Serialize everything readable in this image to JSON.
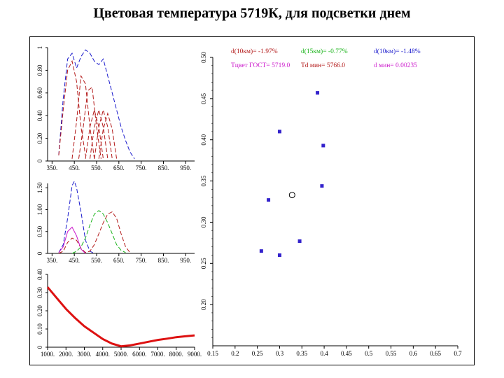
{
  "slide": {
    "title": "Цветовая температура 5719К, для подсветки днем"
  },
  "colors": {
    "blue": "#1a1acc",
    "red": "#b31a1a",
    "green": "#19b319",
    "purple": "#cc19cc",
    "thick_red": "#dd1111",
    "marker": "#3322cc",
    "frame": "#000000"
  },
  "chart_data": [
    {
      "id": "spectra-panel",
      "type": "line",
      "xlim": [
        330,
        990
      ],
      "ylim": [
        0,
        1
      ],
      "x_ticks": [
        "350.",
        "450.",
        "550.",
        "650.",
        "750.",
        "850.",
        "950."
      ],
      "y_ticks": [
        "0",
        "0.20",
        "0.40",
        "0.60",
        "0.80",
        "1"
      ],
      "series": [
        {
          "color": "blue",
          "dash": "6,3",
          "x": [
            380,
            400,
            420,
            440,
            460,
            480,
            500,
            520,
            540,
            560,
            580,
            600,
            620,
            640,
            660,
            680,
            700,
            720
          ],
          "y": [
            0.05,
            0.55,
            0.9,
            0.95,
            0.82,
            0.92,
            0.98,
            0.95,
            0.88,
            0.85,
            0.9,
            0.75,
            0.6,
            0.45,
            0.3,
            0.18,
            0.08,
            0.02
          ]
        },
        {
          "color": "red",
          "dash": "6,3",
          "x": [
            380,
            400,
            420,
            440,
            460,
            480,
            500
          ],
          "y": [
            0.05,
            0.45,
            0.8,
            0.88,
            0.7,
            0.3,
            0.05
          ]
        },
        {
          "color": "red",
          "dash": "6,3",
          "x": [
            440,
            460,
            480,
            500,
            520,
            540
          ],
          "y": [
            0.02,
            0.35,
            0.75,
            0.68,
            0.3,
            0.02
          ]
        },
        {
          "color": "red",
          "dash": "6,3",
          "x": [
            470,
            490,
            510,
            530,
            550,
            570
          ],
          "y": [
            0.02,
            0.3,
            0.62,
            0.65,
            0.3,
            0.02
          ]
        },
        {
          "color": "red",
          "dash": "6,3",
          "x": [
            500,
            520,
            540,
            560,
            580
          ],
          "y": [
            0.02,
            0.3,
            0.45,
            0.3,
            0.02
          ]
        },
        {
          "color": "red",
          "dash": "6,3",
          "x": [
            520,
            540,
            560,
            580,
            600
          ],
          "y": [
            0.02,
            0.3,
            0.45,
            0.3,
            0.02
          ]
        },
        {
          "color": "red",
          "dash": "6,3",
          "x": [
            540,
            560,
            580,
            600,
            620
          ],
          "y": [
            0.02,
            0.3,
            0.45,
            0.3,
            0.02
          ]
        },
        {
          "color": "red",
          "dash": "6,3",
          "x": [
            560,
            580,
            600,
            620,
            640
          ],
          "y": [
            0.02,
            0.28,
            0.42,
            0.28,
            0.02
          ]
        }
      ]
    },
    {
      "id": "color-matching-panel",
      "type": "line",
      "xlim": [
        330,
        990
      ],
      "ylim": [
        0,
        1.6
      ],
      "x_ticks": [
        "350.",
        "450.",
        "550.",
        "650.",
        "750.",
        "850.",
        "950."
      ],
      "y_ticks": [
        "0",
        "0.50",
        "1.00",
        "1.50"
      ],
      "series": [
        {
          "color": "blue",
          "dash": "6,3",
          "x": [
            380,
            400,
            420,
            440,
            450,
            460,
            480,
            500,
            520,
            540
          ],
          "y": [
            0.02,
            0.2,
            0.8,
            1.55,
            1.65,
            1.5,
            0.95,
            0.3,
            0.05,
            0.0
          ]
        },
        {
          "color": "red",
          "dash": "6,3",
          "x": [
            380,
            400,
            420,
            440,
            460,
            480,
            500,
            520,
            540,
            560,
            580,
            600,
            620,
            640,
            660,
            680,
            700
          ],
          "y": [
            0.0,
            0.05,
            0.25,
            0.35,
            0.3,
            0.12,
            0.02,
            0.05,
            0.2,
            0.45,
            0.7,
            0.9,
            0.95,
            0.8,
            0.45,
            0.15,
            0.02
          ]
        },
        {
          "color": "green",
          "dash": "6,3",
          "x": [
            440,
            460,
            480,
            500,
            520,
            540,
            560,
            580,
            600,
            620,
            640,
            660,
            680
          ],
          "y": [
            0.0,
            0.05,
            0.15,
            0.35,
            0.65,
            0.9,
            0.98,
            0.9,
            0.7,
            0.45,
            0.2,
            0.07,
            0.02
          ]
        },
        {
          "color": "purple",
          "dash": "",
          "x": [
            380,
            400,
            420,
            440,
            460,
            480,
            500
          ],
          "y": [
            0.02,
            0.15,
            0.5,
            0.6,
            0.4,
            0.1,
            0.0
          ]
        }
      ]
    },
    {
      "id": "error-vs-temperature-panel",
      "type": "line",
      "xlim": [
        1000,
        9000
      ],
      "ylim": [
        0,
        0.4
      ],
      "x_ticks": [
        "1000.",
        "2000.",
        "3000.",
        "4000.",
        "5000.",
        "6000.",
        "7000.",
        "8000.",
        "9000."
      ],
      "y_ticks": [
        "0",
        "0.10",
        "0.20",
        "0.30",
        "0.40"
      ],
      "series": [
        {
          "color": "thick_red",
          "dash": "",
          "x": [
            1000,
            1500,
            2000,
            2500,
            3000,
            3500,
            4000,
            4500,
            5000,
            5500,
            6000,
            6500,
            7000,
            7500,
            8000,
            8500,
            9000
          ],
          "y": [
            0.33,
            0.27,
            0.21,
            0.16,
            0.115,
            0.08,
            0.045,
            0.02,
            0.005,
            0.01,
            0.02,
            0.03,
            0.04,
            0.047,
            0.055,
            0.06,
            0.065
          ]
        }
      ]
    },
    {
      "id": "chromaticity-panel",
      "type": "scatter",
      "xlim": [
        0.15,
        0.7
      ],
      "ylim": [
        0.15,
        0.5
      ],
      "x_ticks": [
        "0.15",
        "0.2",
        "0.25",
        "0.3",
        "0.35",
        "0.4",
        "0.45",
        "0.5",
        "0.55",
        "0.6",
        "0.65",
        "0.7"
      ],
      "y_ticks": [
        "0.20",
        "0.25",
        "0.30",
        "0.35",
        "0.40",
        "0.45",
        "0.50"
      ],
      "annotations": [
        {
          "text": "d(10км)= -1.97%",
          "color": "red"
        },
        {
          "text": "d(15км)= -0.77%",
          "color": "green"
        },
        {
          "text": "d(10км)= -1.48%",
          "color": "blue"
        },
        {
          "text": "Тцвет ГОСТ= 5719.0",
          "color": "purple"
        },
        {
          "text": "Td мин= 5766.0",
          "color": "red"
        },
        {
          "text": "d мин= 0.00235",
          "color": "purple"
        }
      ],
      "points": [
        {
          "x": 0.259,
          "y": 0.265,
          "shape": "dot"
        },
        {
          "x": 0.3,
          "y": 0.26,
          "shape": "dot"
        },
        {
          "x": 0.345,
          "y": 0.277,
          "shape": "dot"
        },
        {
          "x": 0.275,
          "y": 0.327,
          "shape": "dot"
        },
        {
          "x": 0.395,
          "y": 0.344,
          "shape": "dot"
        },
        {
          "x": 0.3,
          "y": 0.41,
          "shape": "dot"
        },
        {
          "x": 0.398,
          "y": 0.393,
          "shape": "dot"
        },
        {
          "x": 0.385,
          "y": 0.457,
          "shape": "dot"
        },
        {
          "x": 0.328,
          "y": 0.333,
          "shape": "circle"
        }
      ]
    }
  ]
}
